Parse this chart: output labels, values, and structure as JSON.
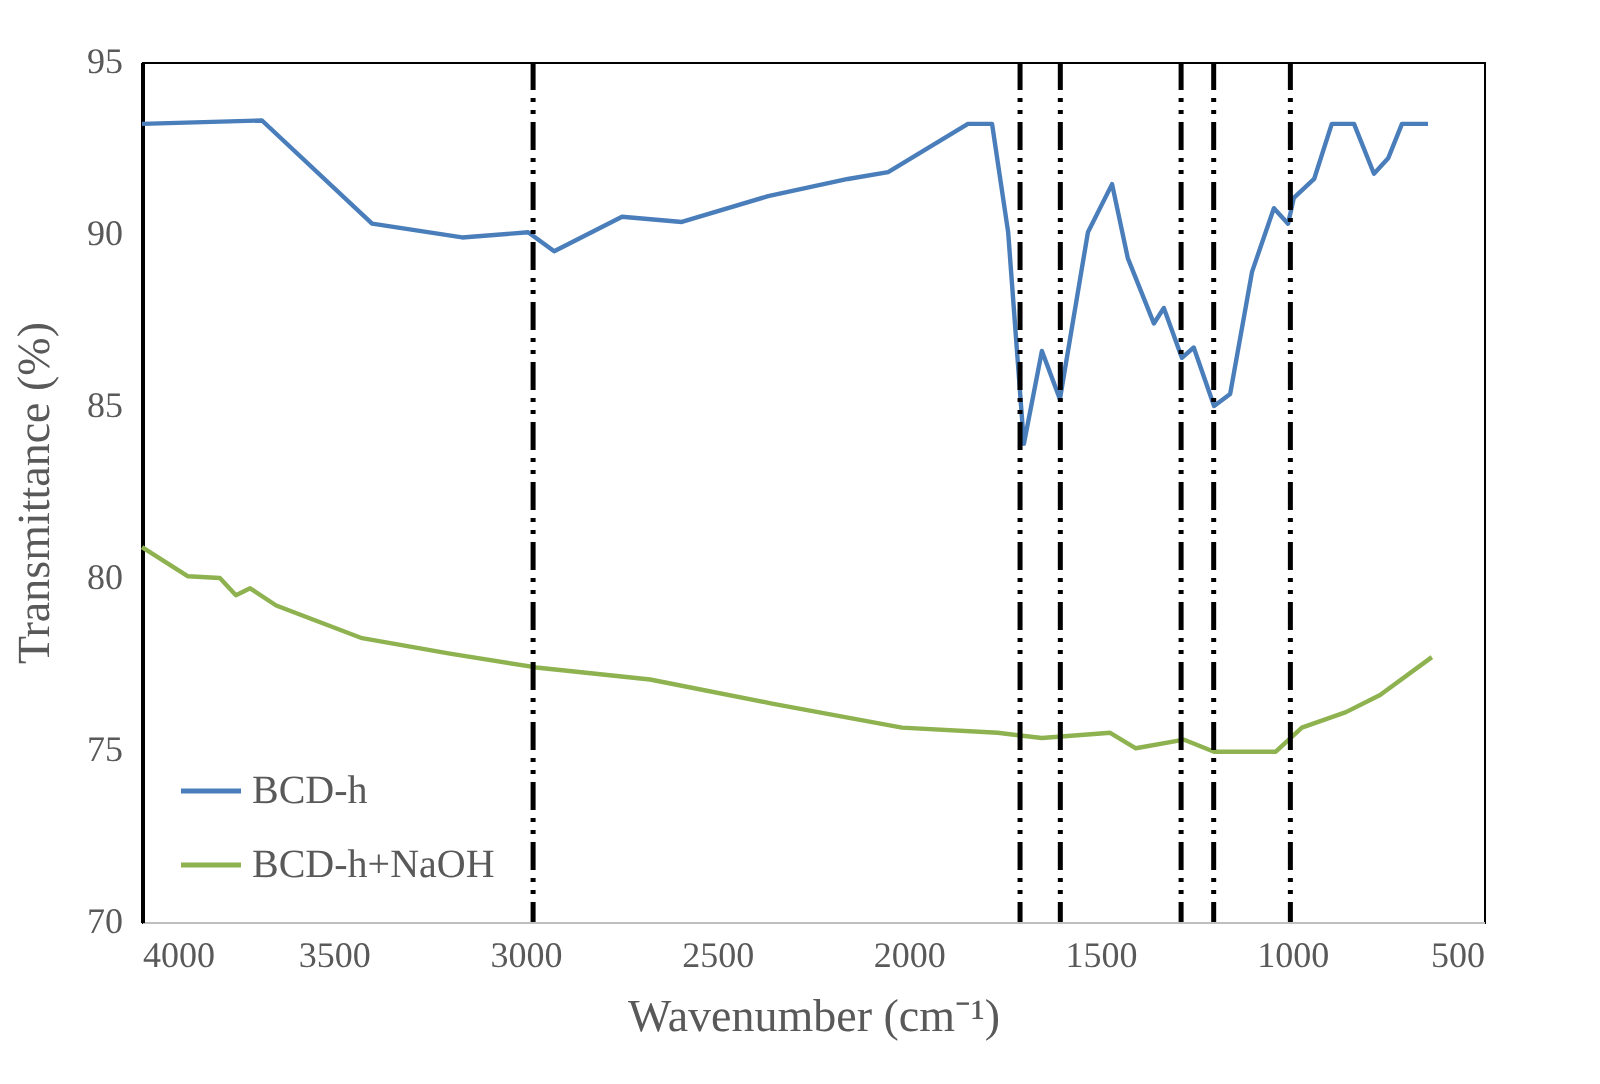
{
  "chart_data": {
    "type": "line",
    "xlabel": "Wavenumber (cm⁻¹)",
    "ylabel": "Transmittance (%)",
    "xlim": [
      4000,
      500
    ],
    "xticks": [
      4000,
      3500,
      3000,
      2500,
      2000,
      1500,
      1000,
      500
    ],
    "ylim": [
      70,
      95
    ],
    "yticks": [
      70,
      75,
      80,
      85,
      90,
      95
    ],
    "grid": false,
    "legend": "bottom left",
    "line_style": "solid",
    "series": [
      {
        "name": "BCD-h",
        "color": "#4a7ebb",
        "x": [
          4000,
          3687,
          3400,
          3165,
          2993,
          2925,
          2748,
          2592,
          2367,
          2159,
          2054,
          1846,
          1783,
          1741,
          1700,
          1653,
          1606,
          1533,
          1470,
          1429,
          1361,
          1335,
          1288,
          1257,
          1204,
          1162,
          1105,
          1048,
          1011,
          996,
          943,
          897,
          839,
          787,
          750,
          714,
          646
        ],
        "values": [
          93.2,
          93.3,
          90.3,
          89.9,
          90.05,
          89.5,
          90.5,
          90.35,
          91.1,
          91.6,
          91.8,
          93.2,
          93.2,
          90.05,
          83.9,
          86.6,
          85.2,
          90.05,
          91.45,
          89.3,
          87.4,
          87.85,
          86.4,
          86.7,
          85.0,
          85.35,
          88.9,
          90.75,
          90.3,
          91.05,
          91.6,
          93.2,
          93.2,
          91.75,
          92.2,
          93.2,
          93.2
        ]
      },
      {
        "name": "BCD-h+NaOH",
        "color": "#8db24f",
        "x": [
          4000,
          3880,
          3797,
          3755,
          3718,
          3650,
          3426,
          3197,
          2972,
          2675,
          2357,
          2018,
          1768,
          1653,
          1475,
          1408,
          1282,
          1204,
          1043,
          975,
          860,
          771,
          636
        ],
        "values": [
          80.9,
          80.05,
          80.0,
          79.5,
          79.7,
          79.2,
          78.25,
          77.8,
          77.4,
          77.05,
          76.35,
          75.65,
          75.5,
          75.35,
          75.5,
          75.05,
          75.3,
          74.95,
          74.95,
          75.65,
          76.1,
          76.6,
          77.7
        ]
      }
    ],
    "ref_lines": [
      {
        "axis": "x",
        "value": 2980,
        "color": "#000000",
        "line_style": "dashdot"
      },
      {
        "axis": "x",
        "value": 1710,
        "color": "#000000",
        "line_style": "dashdot"
      },
      {
        "axis": "x",
        "value": 1605,
        "color": "#000000",
        "line_style": "dashdot"
      },
      {
        "axis": "x",
        "value": 1290,
        "color": "#000000",
        "line_style": "dashdot"
      },
      {
        "axis": "x",
        "value": 1205,
        "color": "#000000",
        "line_style": "dashdot"
      },
      {
        "axis": "x",
        "value": 1005,
        "color": "#000000",
        "line_style": "dashdot"
      }
    ]
  }
}
